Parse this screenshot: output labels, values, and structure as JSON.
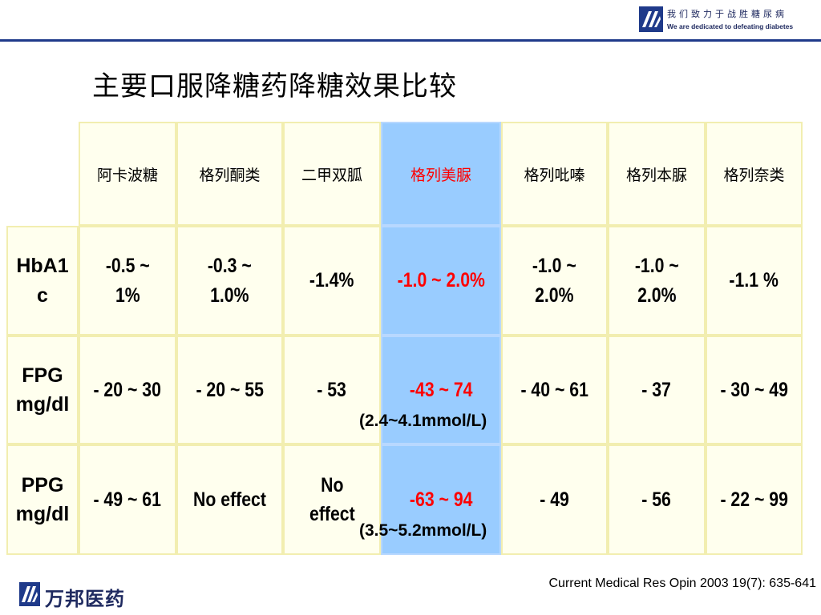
{
  "header": {
    "slogan_cn": "我们致力于战胜糖尿病",
    "slogan_en": "We are dedicated to defeating diabetes",
    "logo_icon": "wanbang-logo-icon",
    "brand_color": "#1f3a8a"
  },
  "title": "主要口服降糖药降糖效果比较",
  "table": {
    "columns": [
      "阿卡波糖",
      "格列酮类",
      "二甲双胍",
      "格列美脲",
      "格列吡嗪",
      "格列本脲",
      "格列奈类"
    ],
    "highlight_column_index": 3,
    "highlight_color": "#99ccff",
    "highlight_text_color": "#ff0000",
    "rows": [
      {
        "label_lines": [
          "HbA1",
          "c"
        ],
        "cells": [
          [
            "-0.5 ~",
            "1%"
          ],
          [
            "-0.3 ~",
            "1.0%"
          ],
          [
            "-1.4%"
          ],
          [
            "-1.0 ~ 2.0%"
          ],
          [
            "-1.0 ~",
            "2.0%"
          ],
          [
            "-1.0 ~",
            "2.0%"
          ],
          [
            "-1.1 %"
          ]
        ]
      },
      {
        "label_lines": [
          "FPG",
          "mg/dl"
        ],
        "cells": [
          [
            "- 20 ~ 30"
          ],
          [
            "- 20 ~ 55"
          ],
          [
            "- 53"
          ],
          [
            "-43 ~ 74"
          ],
          [
            "- 40 ~ 61"
          ],
          [
            "- 37"
          ],
          [
            "- 30 ~ 49"
          ]
        ],
        "note": "(2.4~4.1mmol/L)"
      },
      {
        "label_lines": [
          "PPG",
          "mg/dl"
        ],
        "cells": [
          [
            "- 49 ~ 61"
          ],
          [
            "No effect"
          ],
          [
            "No",
            "effect"
          ],
          [
            "-63 ~ 94"
          ],
          [
            "- 49"
          ],
          [
            "- 56"
          ],
          [
            "- 22 ~ 99"
          ]
        ],
        "note": "(3.5~5.2mmol/L)"
      }
    ]
  },
  "citation": "Current Medical Res Opin 2003  19(7): 635-641",
  "footer": {
    "brand": "万邦医药",
    "logo_icon": "wanbang-logo-icon"
  }
}
